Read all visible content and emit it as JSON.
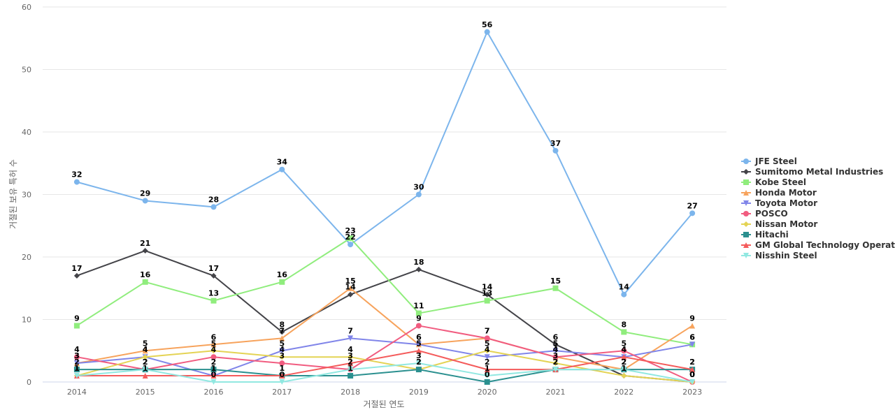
{
  "chart_data": {
    "type": "line",
    "title": "",
    "xlabel": "거절된 연도",
    "ylabel": "거절된 보유 특허 수",
    "categories": [
      "2014",
      "2015",
      "2016",
      "2017",
      "2018",
      "2019",
      "2020",
      "2021",
      "2022",
      "2023"
    ],
    "ylim": [
      0,
      60
    ],
    "yticks": [
      0,
      10,
      20,
      30,
      40,
      50,
      60
    ],
    "grid": true,
    "legend_position": "right",
    "data_labels": true,
    "series": [
      {
        "name": "JFE Steel",
        "color": "#7cb5ec",
        "marker": "circle",
        "values": [
          32,
          29,
          28,
          34,
          22,
          30,
          56,
          37,
          14,
          27
        ]
      },
      {
        "name": "Sumitomo Metal Industries",
        "color": "#434348",
        "marker": "diamond",
        "values": [
          17,
          21,
          17,
          8,
          14,
          18,
          14,
          6,
          1,
          0
        ]
      },
      {
        "name": "Kobe Steel",
        "color": "#90ed7d",
        "marker": "square",
        "values": [
          9,
          16,
          13,
          16,
          23,
          11,
          13,
          15,
          8,
          6
        ]
      },
      {
        "name": "Honda Motor",
        "color": "#f7a35c",
        "marker": "triangle",
        "values": [
          3,
          5,
          6,
          7,
          15,
          6,
          7,
          4,
          2,
          9
        ]
      },
      {
        "name": "Toyota Motor",
        "color": "#8085e9",
        "marker": "triangle-down",
        "values": [
          3,
          4,
          1,
          5,
          7,
          6,
          4,
          5,
          4,
          6
        ]
      },
      {
        "name": "POSCO",
        "color": "#f15c80",
        "marker": "circle",
        "values": [
          4,
          2,
          4,
          3,
          2,
          9,
          7,
          4,
          5,
          0
        ]
      },
      {
        "name": "Nissan Motor",
        "color": "#e4d354",
        "marker": "diamond",
        "values": [
          1,
          4,
          5,
          4,
          4,
          2,
          5,
          3,
          1,
          0
        ]
      },
      {
        "name": "Hitachi",
        "color": "#2b908f",
        "marker": "square",
        "values": [
          2,
          2,
          2,
          1,
          1,
          2,
          0,
          2,
          2,
          2
        ]
      },
      {
        "name": "GM Global Technology Operat...",
        "color": "#f45b5b",
        "marker": "triangle",
        "values": [
          1,
          1,
          1,
          1,
          3,
          5,
          2,
          2,
          4,
          2
        ]
      },
      {
        "name": "Nisshin Steel",
        "color": "#91e8e1",
        "marker": "triangle-down",
        "values": [
          1,
          2,
          0,
          0,
          2,
          3,
          1,
          2,
          2,
          0
        ]
      }
    ]
  }
}
